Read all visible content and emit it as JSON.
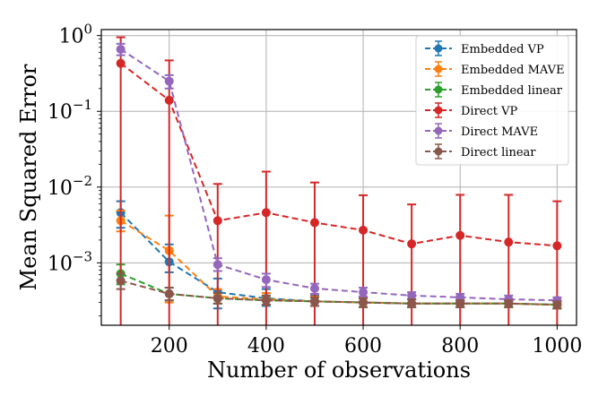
{
  "chart_data": {
    "type": "line",
    "xlabel": "Number of observations",
    "ylabel": "Mean Squared Error",
    "yscale": "log",
    "x": [
      100,
      200,
      300,
      400,
      500,
      600,
      700,
      800,
      900,
      1000
    ],
    "xlim": [
      60,
      1040
    ],
    "ylim": [
      0.00015,
      1.2
    ],
    "xticks": [
      200,
      400,
      600,
      800,
      1000
    ],
    "yticks": [
      {
        "value": 1,
        "label": "10",
        "exp": "0"
      },
      {
        "value": 0.1,
        "label": "10",
        "exp": "−1"
      },
      {
        "value": 0.01,
        "label": "10",
        "exp": "−2"
      },
      {
        "value": 0.001,
        "label": "10",
        "exp": "−3"
      }
    ],
    "grid": true,
    "legend_position": "top-right",
    "series": [
      {
        "name": "Embedded VP",
        "color": "#1f77b4",
        "values": [
          0.0046,
          0.00103,
          0.00041,
          0.00034,
          0.00031,
          0.0003,
          0.00029,
          0.00029,
          0.00029,
          0.00028
        ],
        "err_low": [
          0.0029,
          0.00075,
          0.00025,
          0.00027,
          0.00027,
          0.00026,
          0.00026,
          0.00026,
          0.00026,
          0.00025
        ],
        "err_high": [
          0.0065,
          0.00175,
          0.00062,
          0.00045,
          0.00037,
          0.00035,
          0.00033,
          0.00032,
          0.00032,
          0.00031
        ]
      },
      {
        "name": "Embedded MAVE",
        "color": "#ff7f0e",
        "values": [
          0.0036,
          0.00145,
          0.00036,
          0.00033,
          0.00031,
          0.0003,
          0.00029,
          0.00029,
          0.00029,
          0.00028
        ],
        "err_low": [
          0.0026,
          0.0003,
          0.00029,
          0.00028,
          0.00027,
          0.00026,
          0.00026,
          0.00026,
          0.00026,
          0.00025
        ],
        "err_high": [
          0.0049,
          0.0042,
          0.00045,
          0.0004,
          0.00036,
          0.00035,
          0.00033,
          0.00032,
          0.00032,
          0.00031
        ]
      },
      {
        "name": "Embedded linear",
        "color": "#2ca02c",
        "values": [
          0.00072,
          0.00039,
          0.00034,
          0.00032,
          0.00031,
          0.0003,
          0.00029,
          0.00029,
          0.00029,
          0.00028
        ],
        "err_low": [
          0.00052,
          0.00032,
          0.00029,
          0.00028,
          0.00027,
          0.00026,
          0.00026,
          0.00026,
          0.00026,
          0.00025
        ],
        "err_high": [
          0.00095,
          0.00047,
          0.0004,
          0.00037,
          0.00035,
          0.00034,
          0.00033,
          0.00032,
          0.00032,
          0.00031
        ]
      },
      {
        "name": "Direct VP",
        "color": "#d62728",
        "values": [
          0.43,
          0.14,
          0.0036,
          0.0046,
          0.0034,
          0.0027,
          0.00178,
          0.0023,
          0.00188,
          0.00168
        ],
        "err_low": [
          0.00015,
          0.00015,
          0.00015,
          0.00015,
          0.00015,
          0.00015,
          0.00015,
          0.00015,
          0.00015,
          0.00015
        ],
        "err_high": [
          0.95,
          0.47,
          0.011,
          0.016,
          0.0115,
          0.0078,
          0.0059,
          0.0079,
          0.0079,
          0.0065
        ]
      },
      {
        "name": "Direct MAVE",
        "color": "#9467bd",
        "values": [
          0.66,
          0.25,
          0.00095,
          0.0006,
          0.00046,
          0.00041,
          0.00037,
          0.00035,
          0.00033,
          0.00032
        ],
        "err_low": [
          0.55,
          0.2,
          0.00078,
          0.00048,
          0.00039,
          0.00036,
          0.00033,
          0.00031,
          0.0003,
          0.00029
        ],
        "err_high": [
          0.78,
          0.3,
          0.00115,
          0.00072,
          0.00053,
          0.00047,
          0.00041,
          0.00039,
          0.00037,
          0.00035
        ]
      },
      {
        "name": "Direct linear",
        "color": "#8c564b",
        "values": [
          0.00058,
          0.00039,
          0.00034,
          0.00032,
          0.00031,
          0.0003,
          0.00029,
          0.00029,
          0.00029,
          0.00028
        ],
        "err_low": [
          0.00045,
          0.00032,
          0.00029,
          0.00028,
          0.00027,
          0.00026,
          0.00026,
          0.00026,
          0.00026,
          0.00025
        ],
        "err_high": [
          0.00072,
          0.00047,
          0.0004,
          0.00037,
          0.00035,
          0.00034,
          0.00033,
          0.00032,
          0.00032,
          0.00031
        ]
      }
    ]
  }
}
